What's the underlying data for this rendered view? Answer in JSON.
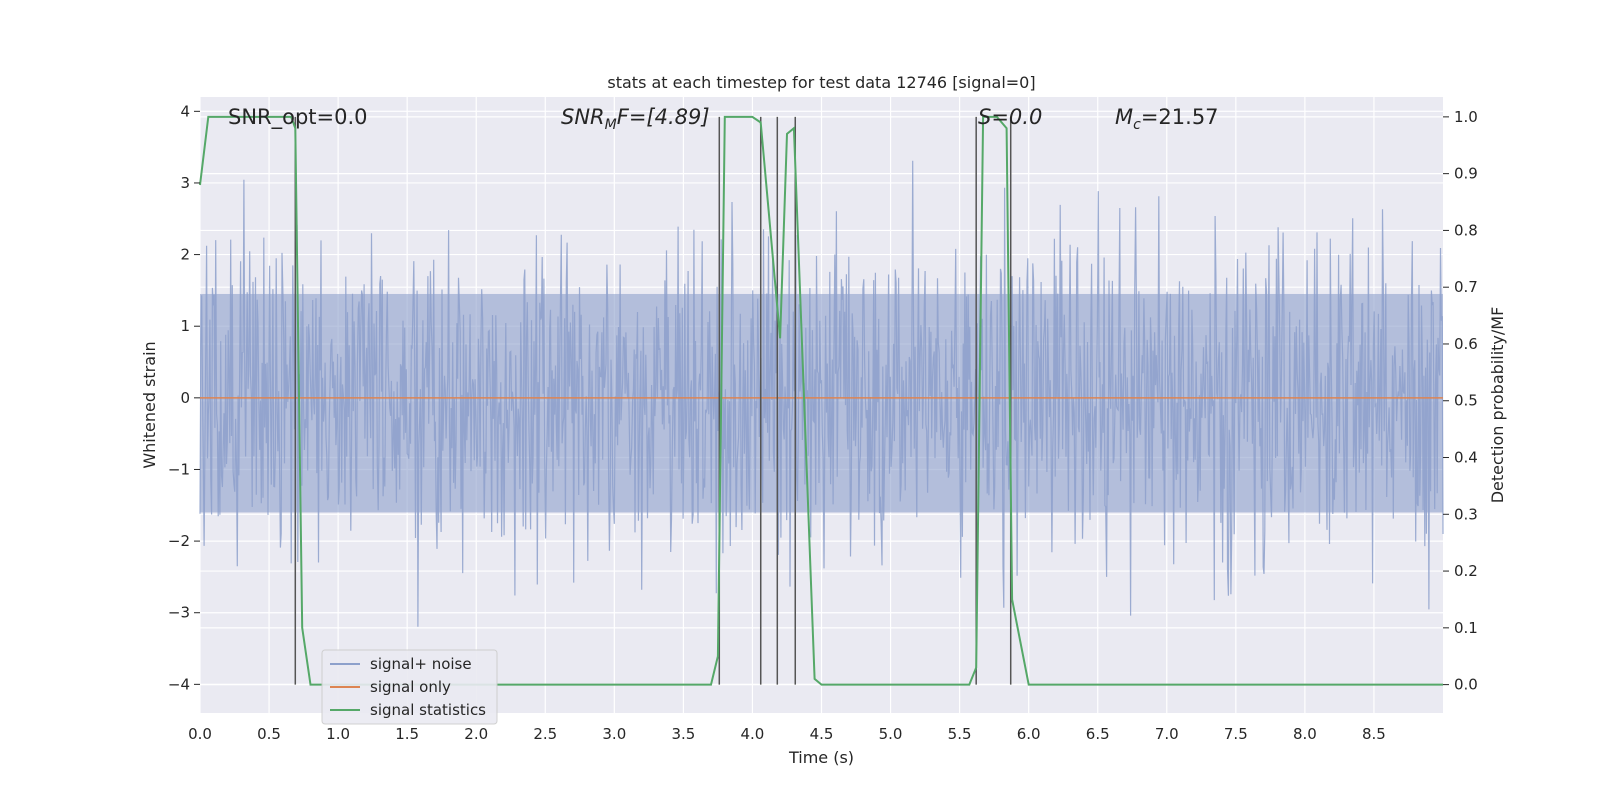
{
  "chart_data": {
    "type": "line",
    "title": "stats at each timestep for test data 12746 [signal=0]",
    "xlabel": "Time (s)",
    "ylabel": "Whitened strain",
    "y2label": "Detection probability/MF",
    "xlim": [
      0,
      9.0
    ],
    "ylim": [
      -4.4,
      4.2
    ],
    "y2lim": [
      -0.05,
      1.035
    ],
    "xticks": [
      "0.0",
      "0.5",
      "1.0",
      "1.5",
      "2.0",
      "2.5",
      "3.0",
      "3.5",
      "4.0",
      "4.5",
      "5.0",
      "5.5",
      "6.0",
      "6.5",
      "7.0",
      "7.5",
      "8.0",
      "8.5"
    ],
    "yticks": [
      "4",
      "3",
      "2",
      "1",
      "0",
      "−1",
      "−2",
      "−3",
      "−4"
    ],
    "y2ticks": [
      "1.0",
      "0.9",
      "0.8",
      "0.7",
      "0.6",
      "0.5",
      "0.4",
      "0.3",
      "0.2",
      "0.1",
      "0.0"
    ],
    "grid": true,
    "legend_position": "bottom-left",
    "annotations": {
      "snr_opt": "SNR_opt=0.0",
      "snr_mf_base": "SNR",
      "snr_mf_sub": "M",
      "snr_mf_rest": "F=[4.89]",
      "s_value": "S=0.0",
      "mc_base": "M",
      "mc_sub": "c",
      "mc_rest": "=21.57"
    },
    "series": [
      {
        "name": "signal+ noise",
        "color": "#8da0cb",
        "kind": "noise",
        "x_start": 0.0,
        "x_end": 9.0,
        "typical_amplitude": 1.5,
        "max_abs": 4.0
      },
      {
        "name": "signal only",
        "color": "#dd8452",
        "x": [
          0.0,
          9.0
        ],
        "y": [
          0.0,
          0.0
        ]
      },
      {
        "name": "signal statistics",
        "color": "#55a868",
        "axis": "right",
        "x": [
          0.0,
          0.06,
          0.1,
          0.2,
          0.4,
          0.66,
          0.69,
          0.74,
          0.8,
          3.5,
          3.7,
          3.75,
          3.8,
          4.0,
          4.06,
          4.2,
          4.25,
          4.3,
          4.45,
          4.5,
          5.0,
          5.57,
          5.62,
          5.67,
          5.77,
          5.84,
          5.88,
          6.0,
          6.5,
          9.0
        ],
        "y": [
          0.88,
          1.0,
          1.0,
          1.0,
          1.0,
          1.0,
          0.98,
          0.1,
          0.0,
          0.0,
          0.0,
          0.05,
          1.0,
          1.0,
          0.99,
          0.61,
          0.97,
          0.98,
          0.01,
          0.0,
          0.0,
          0.0,
          0.03,
          1.0,
          1.0,
          0.98,
          0.15,
          0.0,
          0.0,
          0.0
        ]
      }
    ],
    "vertical_markers": {
      "color": "#555555",
      "x": [
        0.69,
        3.76,
        4.06,
        4.18,
        4.31,
        5.62,
        5.87
      ]
    }
  }
}
